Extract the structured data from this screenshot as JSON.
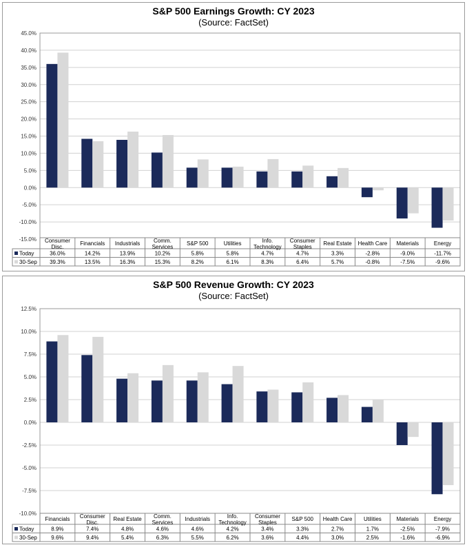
{
  "chart_data": [
    {
      "type": "bar",
      "title": "S&P 500 Earnings Growth: CY 2023",
      "subtitle": "(Source: FactSet)",
      "categories": [
        "Consumer Disc.",
        "Financials",
        "Industrials",
        "Comm. Services",
        "S&P 500",
        "Utilities",
        "Info. Technology",
        "Consumer Staples",
        "Real Estate",
        "Health Care",
        "Materials",
        "Energy"
      ],
      "series": [
        {
          "name": "Today",
          "color": "#1b2a5a",
          "values": [
            36.0,
            14.2,
            13.9,
            10.2,
            5.8,
            5.8,
            4.7,
            4.7,
            3.3,
            -2.8,
            -9.0,
            -11.7
          ],
          "labels": [
            "36.0%",
            "14.2%",
            "13.9%",
            "10.2%",
            "5.8%",
            "5.8%",
            "4.7%",
            "4.7%",
            "3.3%",
            "-2.8%",
            "-9.0%",
            "-11.7%"
          ]
        },
        {
          "name": "30-Sep",
          "color": "#d9d9d9",
          "values": [
            39.3,
            13.5,
            16.3,
            15.3,
            8.2,
            6.1,
            8.3,
            6.4,
            5.7,
            -0.8,
            -7.5,
            -9.6
          ],
          "labels": [
            "39.3%",
            "13.5%",
            "16.3%",
            "15.3%",
            "8.2%",
            "6.1%",
            "8.3%",
            "6.4%",
            "5.7%",
            "-0.8%",
            "-7.5%",
            "-9.6%"
          ]
        }
      ],
      "ylim": [
        -15,
        45
      ],
      "ytick_step": 5,
      "ytick_labels": [
        "45.0%",
        "40.0%",
        "35.0%",
        "30.0%",
        "25.0%",
        "20.0%",
        "15.0%",
        "10.0%",
        "5.0%",
        "0.0%",
        "-5.0%",
        "-10.0%",
        "-15.0%"
      ],
      "grid": true,
      "legend": "data-table"
    },
    {
      "type": "bar",
      "title": "S&P 500 Revenue Growth: CY 2023",
      "subtitle": "(Source: FactSet)",
      "categories": [
        "Financials",
        "Consumer Disc.",
        "Real Estate",
        "Comm. Services",
        "Industrials",
        "Info. Technology",
        "Consumer Staples",
        "S&P 500",
        "Health Care",
        "Utilities",
        "Materials",
        "Energy"
      ],
      "series": [
        {
          "name": "Today",
          "color": "#1b2a5a",
          "values": [
            8.9,
            7.4,
            4.8,
            4.6,
            4.6,
            4.2,
            3.4,
            3.3,
            2.7,
            1.7,
            -2.5,
            -7.9
          ],
          "labels": [
            "8.9%",
            "7.4%",
            "4.8%",
            "4.6%",
            "4.6%",
            "4.2%",
            "3.4%",
            "3.3%",
            "2.7%",
            "1.7%",
            "-2.5%",
            "-7.9%"
          ]
        },
        {
          "name": "30-Sep",
          "color": "#d9d9d9",
          "values": [
            9.6,
            9.4,
            5.4,
            6.3,
            5.5,
            6.2,
            3.6,
            4.4,
            3.0,
            2.5,
            -1.6,
            -6.9
          ],
          "labels": [
            "9.6%",
            "9.4%",
            "5.4%",
            "6.3%",
            "5.5%",
            "6.2%",
            "3.6%",
            "4.4%",
            "3.0%",
            "2.5%",
            "-1.6%",
            "-6.9%"
          ]
        }
      ],
      "ylim": [
        -10,
        12.5
      ],
      "ytick_step": 2.5,
      "ytick_labels": [
        "12.5%",
        "10.0%",
        "7.5%",
        "5.0%",
        "2.5%",
        "0.0%",
        "-2.5%",
        "-5.0%",
        "-7.5%",
        "-10.0%"
      ],
      "grid": true,
      "legend": "data-table"
    }
  ]
}
